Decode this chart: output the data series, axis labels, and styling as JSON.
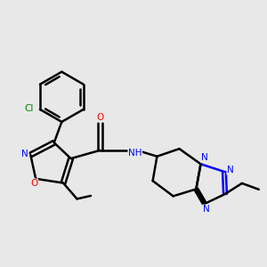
{
  "bg_color": "#e8e8e8",
  "line_color": "#000000",
  "bond_width": 1.8,
  "atom_colors": {
    "N": "#0000ff",
    "O": "#ff0000",
    "Cl": "#008000",
    "C": "#000000",
    "H": "#000000"
  },
  "figsize": [
    3.0,
    3.0
  ],
  "dpi": 100
}
